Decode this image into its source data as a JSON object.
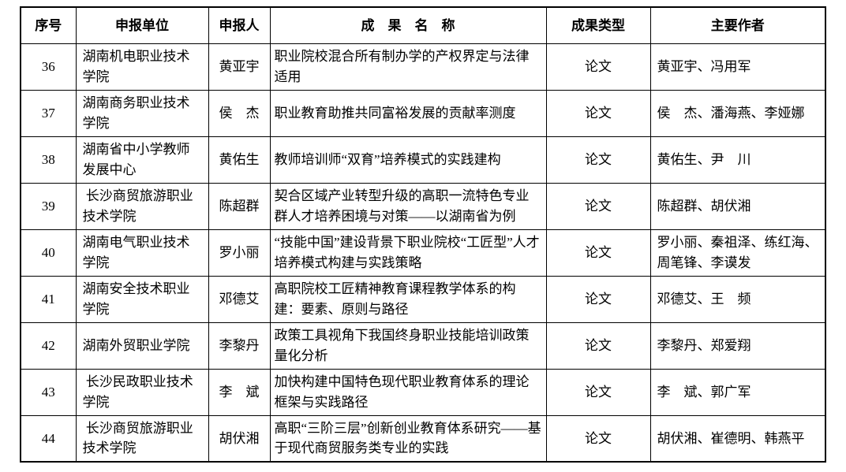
{
  "page": {
    "background_color": "#ffffff",
    "border_color": "#000000",
    "text_color": "#000000"
  },
  "table": {
    "headers": {
      "serial": "序号",
      "unit": "申报单位",
      "applicant": "申报人",
      "title": "成　果　名　称",
      "type": "成果类型",
      "authors": "主要作者"
    },
    "rows": [
      {
        "serial": "36",
        "unit": "湖南机电职业技术学院",
        "applicant": "黄亚宇",
        "title": "职业院校混合所有制办学的产权界定与法律适用",
        "type": "论文",
        "authors": "黄亚宇、冯用军"
      },
      {
        "serial": "37",
        "unit": "湖南商务职业技术学院",
        "applicant": "侯　杰",
        "title": "职业教育助推共同富裕发展的贡献率测度",
        "type": "论文",
        "authors": "侯　杰、潘海燕、李娅娜"
      },
      {
        "serial": "38",
        "unit": "湖南省中小学教师发展中心",
        "applicant": "黄佑生",
        "title": "教师培训师“双育”培养模式的实践建构",
        "type": "论文",
        "authors": "黄佑生、尹　川"
      },
      {
        "serial": "39",
        "unit": " 长沙商贸旅游职业技术学院",
        "applicant": "陈超群",
        "title": "契合区域产业转型升级的高职一流特色专业群人才培养困境与对策——以湖南省为例",
        "type": "论文",
        "authors": "陈超群、胡伏湘"
      },
      {
        "serial": "40",
        "unit": "湖南电气职业技术学院",
        "applicant": "罗小丽",
        "title": "“技能中国”建设背景下职业院校“工匠型”人才培养模式构建与实践策略",
        "type": "论文",
        "authors": "罗小丽、秦祖泽、练红海、周笔锋、李谟发"
      },
      {
        "serial": "41",
        "unit": "湖南安全技术职业学院",
        "applicant": "邓德艾",
        "title": "高职院校工匠精神教育课程教学体系的构建：要素、原则与路径",
        "type": "论文",
        "authors": "邓德艾、王　频"
      },
      {
        "serial": "42",
        "unit": "湖南外贸职业学院",
        "applicant": "李黎丹",
        "title": "政策工具视角下我国终身职业技能培训政策量化分析",
        "type": "论文",
        "authors": "李黎丹、郑爱翔"
      },
      {
        "serial": "43",
        "unit": " 长沙民政职业技术学院",
        "applicant": "李　斌",
        "title": "加快构建中国特色现代职业教育体系的理论框架与实践路径",
        "type": "论文",
        "authors": "李　斌、郭广军"
      },
      {
        "serial": "44",
        "unit": " 长沙商贸旅游职业技术学院",
        "applicant": "胡伏湘",
        "title": "高职“三阶三层”创新创业教育体系研究——基于现代商贸服务类专业的实践",
        "type": "论文",
        "authors": "胡伏湘、崔德明、韩燕平"
      }
    ]
  }
}
